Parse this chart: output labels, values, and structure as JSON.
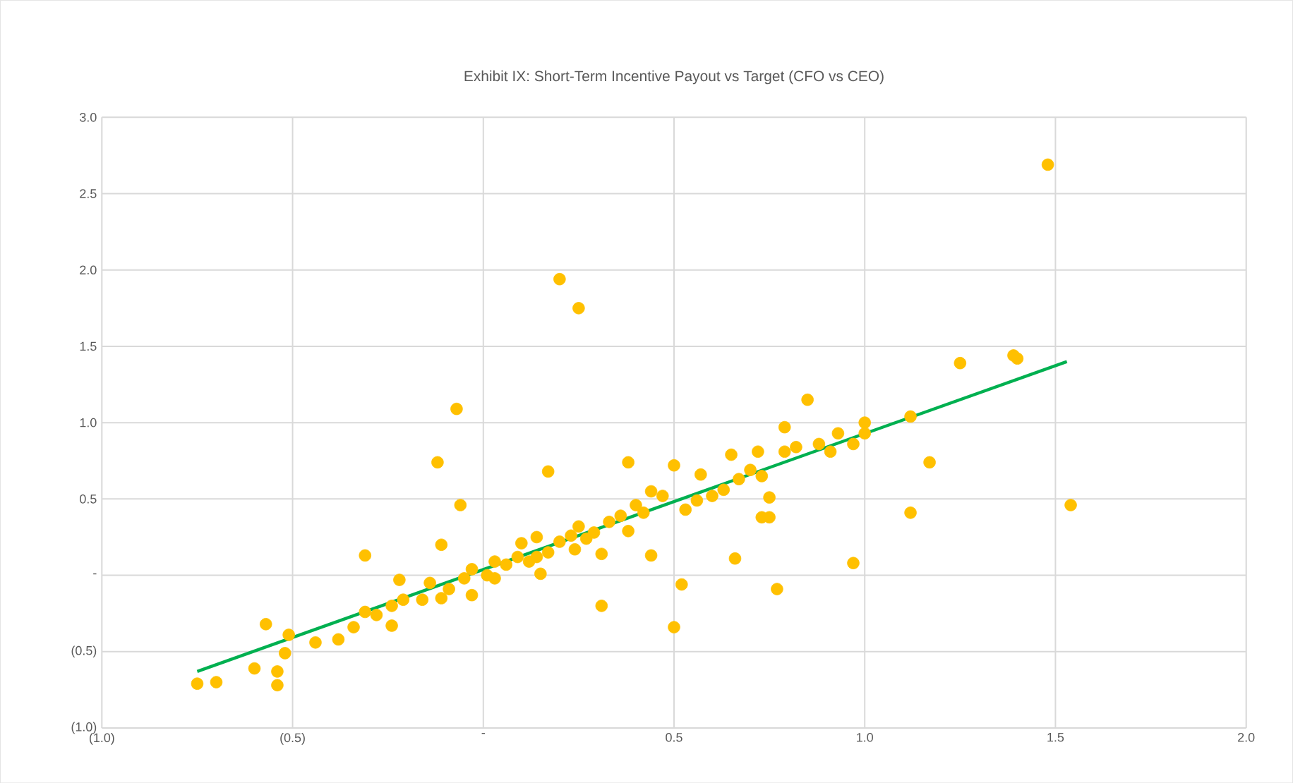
{
  "chart_data": {
    "type": "scatter",
    "title": "Exhibit IX: Short-Term Incentive Payout vs Target (CFO vs CEO)",
    "xlim": [
      -1.0,
      2.0
    ],
    "ylim": [
      -1.0,
      3.0
    ],
    "xticks": [
      {
        "value": -1.0,
        "label": "(1.0)"
      },
      {
        "value": -0.5,
        "label": "(0.5)"
      },
      {
        "value": 0,
        "label": "-"
      },
      {
        "value": 0.5,
        "label": "0.5"
      },
      {
        "value": 1.0,
        "label": "1.0"
      },
      {
        "value": 1.5,
        "label": "1.5"
      },
      {
        "value": 2.0,
        "label": "2.0"
      }
    ],
    "yticks": [
      {
        "value": -1.0,
        "label": "(1.0)"
      },
      {
        "value": -0.5,
        "label": "(0.5)"
      },
      {
        "value": 0,
        "label": "-"
      },
      {
        "value": 0.5,
        "label": "0.5"
      },
      {
        "value": 1.0,
        "label": "1.0"
      },
      {
        "value": 1.5,
        "label": "1.5"
      },
      {
        "value": 2.0,
        "label": "2.0"
      },
      {
        "value": 2.5,
        "label": "2.5"
      },
      {
        "value": 3.0,
        "label": "3.0"
      }
    ],
    "grid": true,
    "marker": "circle",
    "series": [
      {
        "color": "#ffc000",
        "x": [
          -0.75,
          -0.7,
          -0.57,
          -0.6,
          -0.54,
          -0.54,
          -0.52,
          -0.51,
          -0.44,
          -0.38,
          -0.34,
          -0.31,
          -0.31,
          -0.28,
          -0.24,
          -0.24,
          -0.22,
          -0.21,
          -0.16,
          -0.14,
          -0.12,
          -0.11,
          -0.11,
          -0.09,
          -0.07,
          -0.06,
          -0.05,
          -0.03,
          -0.03,
          0.01,
          0.03,
          0.03,
          0.06,
          0.09,
          0.1,
          0.12,
          0.14,
          0.14,
          0.15,
          0.17,
          0.17,
          0.2,
          0.2,
          0.23,
          0.25,
          0.24,
          0.25,
          0.27,
          0.29,
          0.31,
          0.31,
          0.33,
          0.36,
          0.38,
          0.38,
          0.4,
          0.42,
          0.44,
          0.44,
          0.47,
          0.5,
          0.5,
          0.52,
          0.53,
          0.56,
          0.57,
          0.6,
          0.63,
          0.65,
          0.66,
          0.67,
          0.7,
          0.72,
          0.73,
          0.75,
          0.75,
          0.73,
          0.77,
          0.79,
          0.79,
          0.82,
          0.85,
          0.88,
          0.91,
          0.93,
          0.97,
          0.97,
          1.0,
          1.0,
          1.12,
          1.12,
          1.17,
          1.25,
          1.39,
          1.4,
          1.48,
          1.54
        ],
        "values": [
          -0.71,
          -0.7,
          -0.32,
          -0.61,
          -0.63,
          -0.72,
          -0.51,
          -0.39,
          -0.44,
          -0.42,
          -0.34,
          -0.24,
          0.13,
          -0.26,
          -0.2,
          -0.33,
          -0.03,
          -0.16,
          -0.16,
          -0.05,
          0.74,
          -0.15,
          0.2,
          -0.09,
          1.09,
          0.46,
          -0.02,
          0.04,
          -0.13,
          0.0,
          -0.02,
          0.09,
          0.07,
          0.12,
          0.21,
          0.09,
          0.25,
          0.12,
          0.01,
          0.68,
          0.15,
          0.22,
          1.94,
          0.26,
          1.75,
          0.17,
          0.32,
          0.24,
          0.28,
          -0.2,
          0.14,
          0.35,
          0.39,
          0.74,
          0.29,
          0.46,
          0.41,
          0.13,
          0.55,
          0.52,
          -0.34,
          0.72,
          -0.06,
          0.43,
          0.49,
          0.66,
          0.52,
          0.56,
          0.79,
          0.11,
          0.63,
          0.69,
          0.81,
          0.38,
          0.38,
          0.51,
          0.65,
          -0.09,
          0.97,
          0.81,
          0.84,
          1.15,
          0.86,
          0.81,
          0.93,
          0.86,
          0.08,
          1.0,
          0.93,
          1.04,
          0.41,
          0.74,
          1.39,
          1.44,
          1.42,
          2.69,
          0.46
        ]
      },
      {
        "type": "line",
        "color": "#00b050",
        "marker": "none",
        "x": [
          -0.75,
          1.53
        ],
        "values": [
          -0.63,
          1.4
        ]
      }
    ]
  }
}
